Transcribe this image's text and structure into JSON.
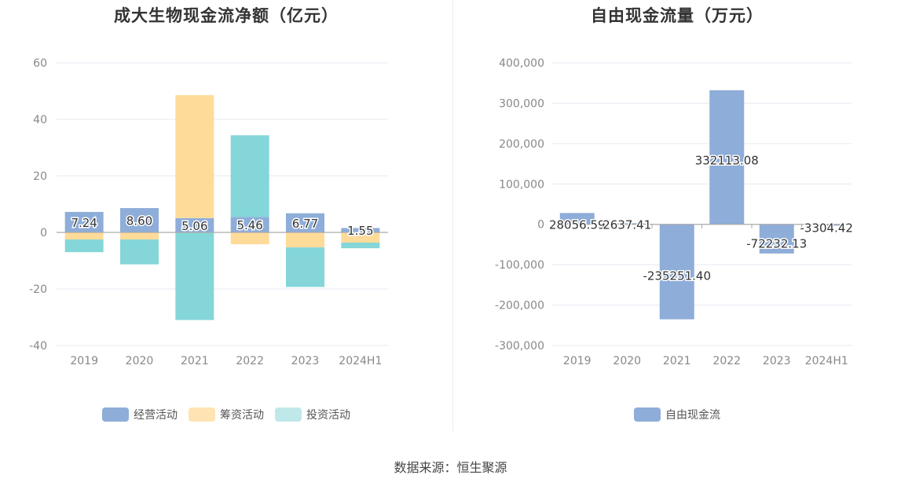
{
  "source_label": "数据来源：恒生聚源",
  "colors": {
    "operating": "#8eadd9",
    "financing": "#ffdb9a",
    "investing": "#85d6d8",
    "free_cash_flow": "#8eadd9",
    "grid": "#e6e9f2",
    "axis": "#aaaaaa"
  },
  "chart_data": [
    {
      "type": "bar",
      "stacked": true,
      "title": "成大生物现金流净额（亿元）",
      "categories": [
        "2019",
        "2020",
        "2021",
        "2022",
        "2023",
        "2024H1"
      ],
      "ylim": [
        -40,
        60
      ],
      "yticks": [
        -40,
        -20,
        0,
        20,
        40,
        60
      ],
      "grid": true,
      "legend_position": "bottom",
      "series": [
        {
          "name": "经营活动",
          "values": [
            7.24,
            8.6,
            5.06,
            5.46,
            6.77,
            1.55
          ],
          "labels": [
            "7.24",
            "8.60",
            "5.06",
            "5.46",
            "6.77",
            "1.55"
          ]
        },
        {
          "name": "筹资活动",
          "values": [
            -2.5,
            -2.5,
            43.5,
            -4.2,
            -5.3,
            -3.6
          ]
        },
        {
          "name": "投资活动",
          "values": [
            -4.5,
            -8.8,
            -31.0,
            28.9,
            -14.0,
            -2.0
          ]
        }
      ]
    },
    {
      "type": "bar",
      "title": "自由现金流量（万元）",
      "categories": [
        "2019",
        "2020",
        "2021",
        "2022",
        "2023",
        "2024H1"
      ],
      "ylim": [
        -300000,
        400000
      ],
      "yticks": [
        -300000,
        -200000,
        -100000,
        0,
        100000,
        200000,
        300000,
        400000
      ],
      "ytick_labels": [
        "-300,000",
        "-200,000",
        "-100,000",
        "0",
        "100,000",
        "200,000",
        "300,000",
        "400,000"
      ],
      "grid": true,
      "legend_position": "bottom",
      "series": [
        {
          "name": "自由现金流",
          "values": [
            28056.59,
            2637.41,
            -235251.4,
            332113.08,
            -72232.13,
            -3304.42
          ],
          "labels": [
            "28056.59",
            "2637.41",
            "-235251.40",
            "332113.08",
            "-72232.13",
            "-3304.42"
          ]
        }
      ]
    }
  ]
}
